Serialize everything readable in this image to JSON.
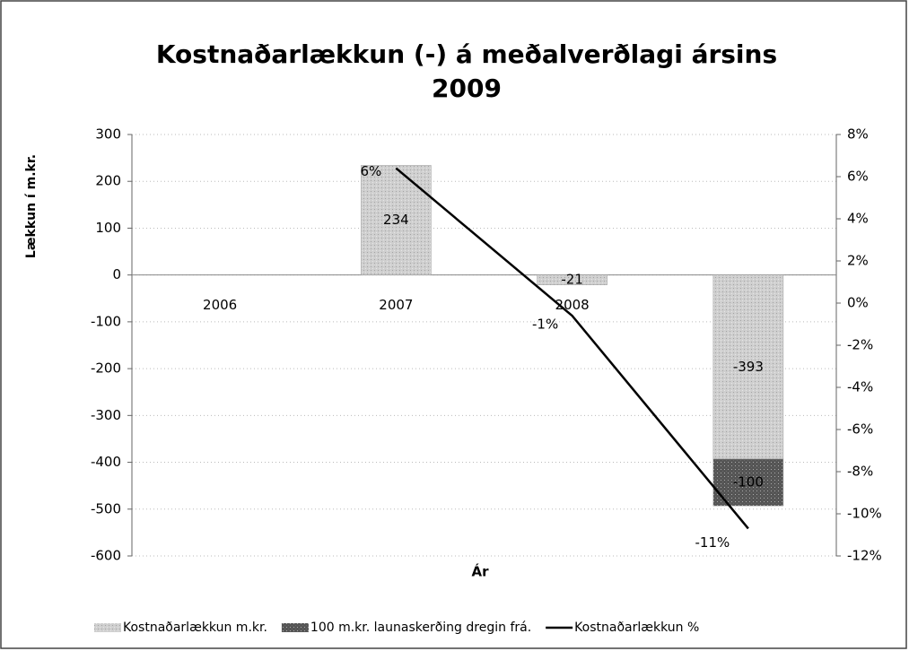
{
  "chart_data": {
    "type": "bar",
    "title": "Kostnaðarlækkun (-) á meðalverðlagi ársins 2009",
    "ylabel": "Lækkun í m.kr.",
    "xlabel": "Ár",
    "categories": [
      "2006",
      "2007",
      "2008",
      "2009"
    ],
    "stacked": true,
    "series": [
      {
        "name": "Kostnaðarlækkun  m.kr.",
        "type": "bar",
        "color": "#cfcfcf",
        "values": [
          null,
          234,
          -21,
          -393
        ]
      },
      {
        "name": "100 m.kr. launaskerðing dregin frá.",
        "type": "bar",
        "color": "#555555",
        "values": [
          null,
          null,
          null,
          -100
        ]
      },
      {
        "name": "Kostnaðarlækkun %",
        "type": "line",
        "axis": "y2",
        "color": "#000000",
        "values": [
          null,
          6.4,
          -0.6,
          -10.7
        ],
        "value_labels": [
          null,
          "6%",
          "-1%",
          "-11%"
        ]
      }
    ],
    "ylim": [
      -600,
      300
    ],
    "yticks": [
      -600,
      -500,
      -400,
      -300,
      -200,
      -100,
      0,
      100,
      200,
      300
    ],
    "y2lim": [
      -12,
      8
    ],
    "y2ticks": [
      {
        "value": -12,
        "label": "-12%"
      },
      {
        "value": -10,
        "label": "-10%"
      },
      {
        "value": -8,
        "label": "-8%"
      },
      {
        "value": -6,
        "label": "-6%"
      },
      {
        "value": -4,
        "label": "-4%"
      },
      {
        "value": -2,
        "label": "-2%"
      },
      {
        "value": 0,
        "label": "0%"
      },
      {
        "value": 2,
        "label": "2%"
      },
      {
        "value": 4,
        "label": "4%"
      },
      {
        "value": 6,
        "label": "6%"
      },
      {
        "value": 8,
        "label": "8%"
      }
    ],
    "grid": true,
    "legend": "bottom"
  }
}
